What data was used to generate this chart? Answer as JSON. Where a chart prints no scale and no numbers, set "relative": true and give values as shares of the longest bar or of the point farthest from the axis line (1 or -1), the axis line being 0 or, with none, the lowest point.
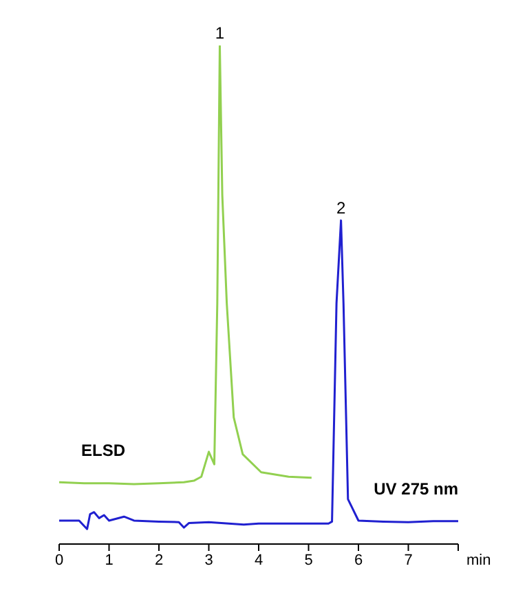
{
  "chart_data": {
    "type": "line",
    "relative": true,
    "xlabel": "min",
    "xlim": [
      0,
      8
    ],
    "xticks": [
      0,
      1,
      2,
      3,
      4,
      5,
      6,
      7,
      {
        "value": 8,
        "label": null
      }
    ],
    "marker": "none",
    "line_style": "solid",
    "series": [
      {
        "name": "ELSD",
        "color": "#92d050",
        "x": [
          0,
          0.5,
          1,
          1.5,
          2,
          2.5,
          2.7,
          2.85,
          3,
          3.11,
          3.17,
          3.22,
          3.27,
          3.36,
          3.5,
          3.68,
          4.05,
          4.6,
          5.06
        ],
        "values": [
          0.124,
          0.122,
          0.122,
          0.12,
          0.122,
          0.124,
          0.127,
          0.135,
          0.185,
          0.16,
          0.483,
          1,
          0.7,
          0.483,
          0.254,
          0.18,
          0.144,
          0.135,
          0.133
        ]
      },
      {
        "name": "UV 275 nm",
        "color": "#2020d0",
        "x": [
          0,
          0.4,
          0.56,
          0.62,
          0.7,
          0.8,
          0.9,
          1,
          1.3,
          1.5,
          2,
          2.4,
          2.5,
          2.6,
          3,
          3.7,
          4,
          5,
          5.4,
          5.47,
          5.56,
          5.65,
          5.7,
          5.79,
          6,
          6.5,
          7,
          7.5,
          8
        ],
        "values": [
          0.047,
          0.047,
          0.03,
          0.06,
          0.064,
          0.052,
          0.058,
          0.047,
          0.055,
          0.047,
          0.045,
          0.044,
          0.033,
          0.042,
          0.044,
          0.039,
          0.041,
          0.041,
          0.041,
          0.045,
          0.483,
          0.649,
          0.483,
          0.09,
          0.047,
          0.045,
          0.044,
          0.046,
          0.046
        ]
      }
    ],
    "annotations": [
      {
        "text": "1",
        "x": 3.22,
        "y": 1
      },
      {
        "text": "2",
        "x": 5.65,
        "y": 0.649
      }
    ]
  }
}
